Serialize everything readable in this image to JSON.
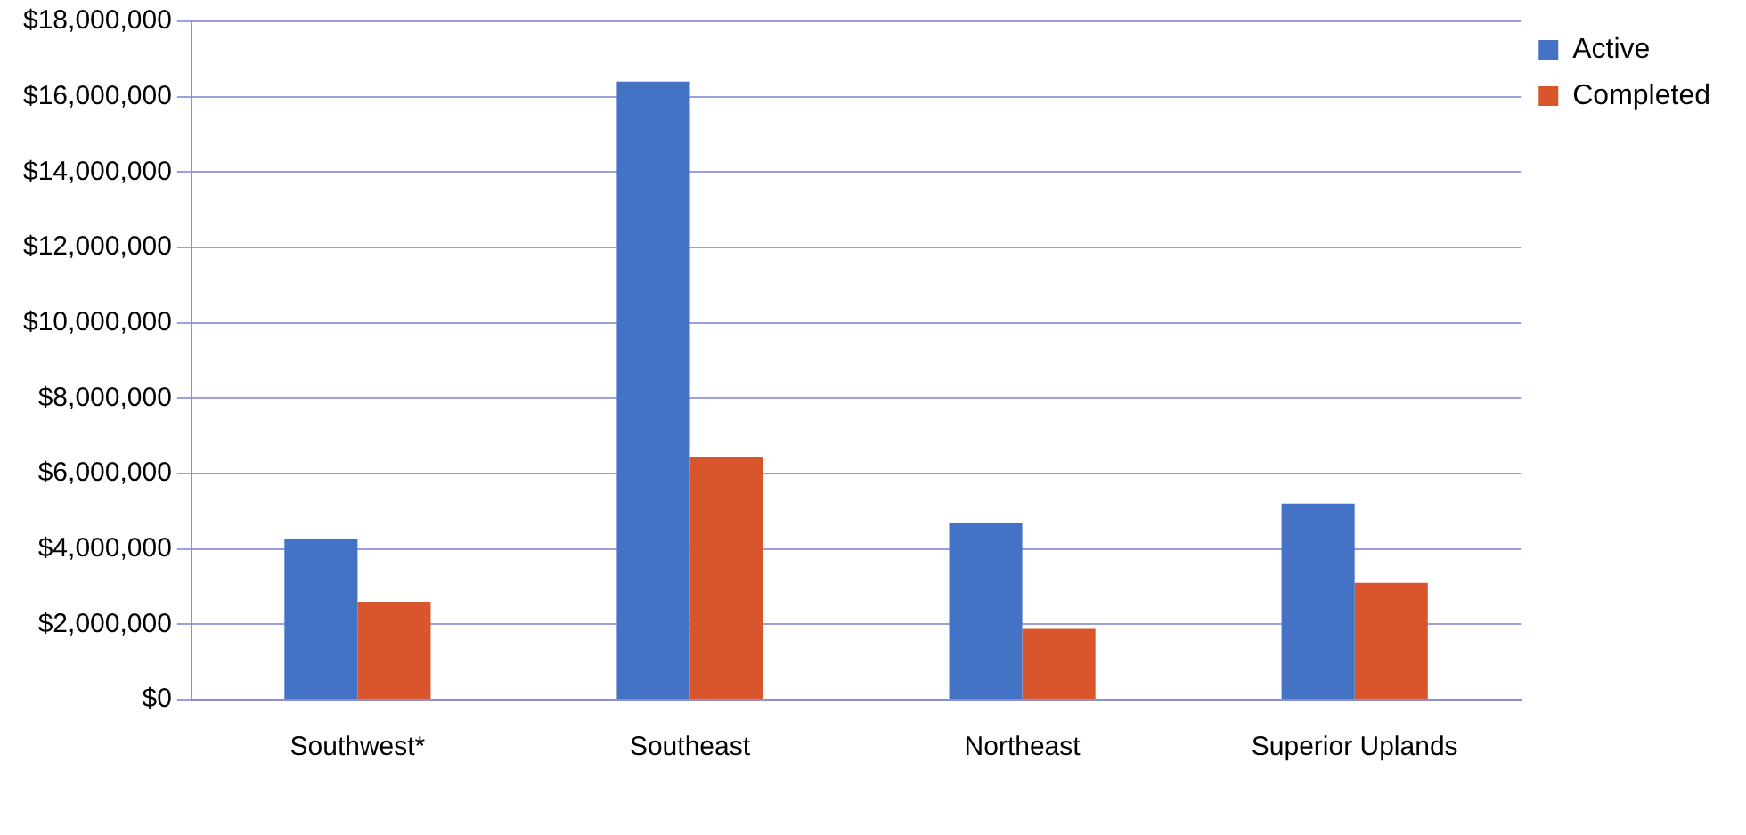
{
  "chart_data": {
    "type": "bar",
    "categories": [
      "Southwest*",
      "Southeast",
      "Northeast",
      "Superior Uplands"
    ],
    "series": [
      {
        "name": "Active",
        "color": "#4472c4",
        "values": [
          4250000,
          16400000,
          4700000,
          5200000
        ]
      },
      {
        "name": "Completed",
        "color": "#d9552b",
        "values": [
          2600000,
          6450000,
          1880000,
          3100000
        ]
      }
    ],
    "ylim": [
      0,
      18000000
    ],
    "yticks": [
      {
        "value": 0,
        "label": "$0"
      },
      {
        "value": 2000000,
        "label": "$2,000,000"
      },
      {
        "value": 4000000,
        "label": "$4,000,000"
      },
      {
        "value": 6000000,
        "label": "$6,000,000"
      },
      {
        "value": 8000000,
        "label": "$8,000,000"
      },
      {
        "value": 10000000,
        "label": "$10,000,000"
      },
      {
        "value": 12000000,
        "label": "$12,000,000"
      },
      {
        "value": 14000000,
        "label": "$14,000,000"
      },
      {
        "value": 16000000,
        "label": "$16,000,000"
      },
      {
        "value": 18000000,
        "label": "$18,000,000"
      }
    ],
    "grid": "y",
    "legend": "right"
  }
}
